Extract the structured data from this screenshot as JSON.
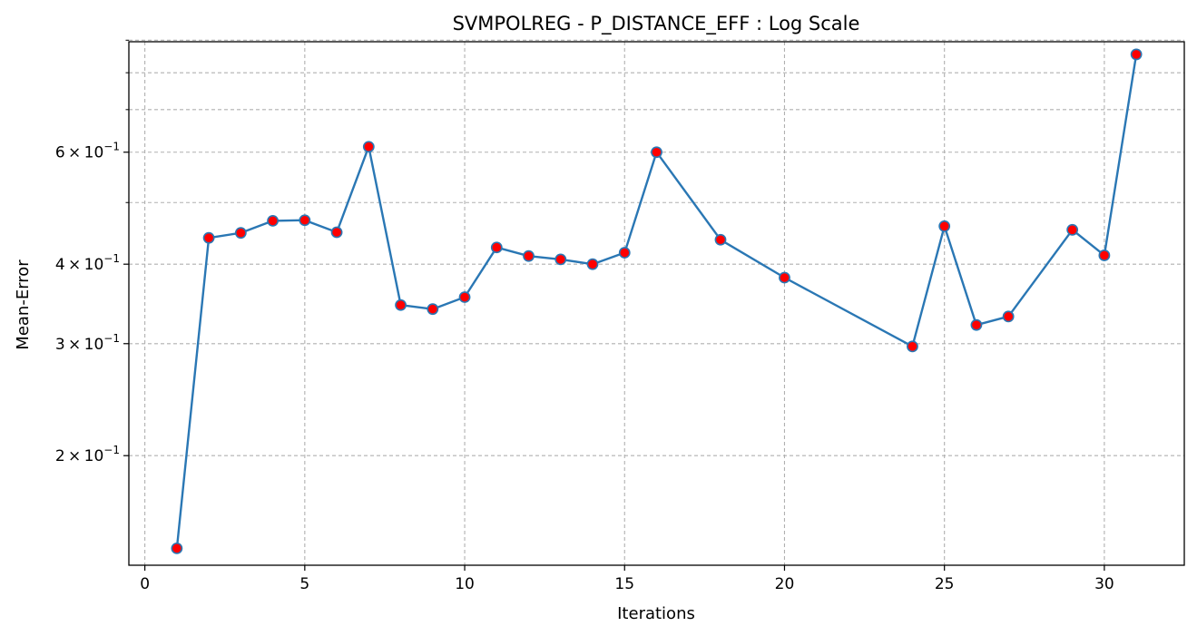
{
  "chart_data": {
    "type": "line",
    "title": "SVMPOLREG - P_DISTANCE_EFF : Log Scale",
    "xlabel": "Iterations",
    "ylabel": "Mean-Error",
    "yscale": "log",
    "grid": true,
    "xlim": [
      -0.5,
      32.5
    ],
    "ylim": [
      0.1345,
      0.895
    ],
    "x_ticks": [
      0,
      5,
      10,
      15,
      20,
      25,
      30
    ],
    "y_major_ticks": [
      {
        "value": 0.2,
        "mantissa": "2",
        "base": "10",
        "exponent": "−1"
      },
      {
        "value": 0.3,
        "mantissa": "3",
        "base": "10",
        "exponent": "−1"
      },
      {
        "value": 0.4,
        "mantissa": "4",
        "base": "10",
        "exponent": "−1"
      },
      {
        "value": 0.6,
        "mantissa": "6",
        "base": "10",
        "exponent": "−1"
      }
    ],
    "y_minor_gridlines": [
      0.5,
      0.7,
      0.8,
      0.9
    ],
    "line_color": "#2a77b4",
    "marker_fill": "#ff0000",
    "marker_edge": "#2a77b4",
    "series": [
      {
        "x": [
          1,
          2,
          3,
          4,
          5,
          6,
          7,
          8,
          9,
          10,
          11,
          12,
          13,
          14,
          15,
          16,
          18,
          20,
          24,
          25,
          26,
          27,
          29,
          30,
          31
        ],
        "values": [
          0.143,
          0.44,
          0.448,
          0.468,
          0.469,
          0.449,
          0.612,
          0.345,
          0.34,
          0.355,
          0.425,
          0.412,
          0.407,
          0.4,
          0.417,
          0.6,
          0.437,
          0.381,
          0.297,
          0.459,
          0.321,
          0.331,
          0.453,
          0.413,
          0.855
        ]
      }
    ]
  }
}
